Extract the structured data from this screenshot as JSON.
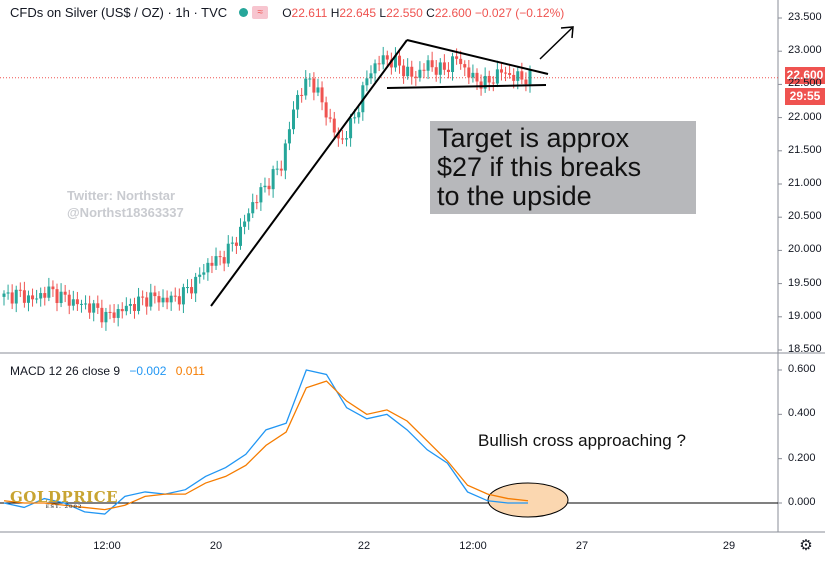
{
  "header": {
    "symbol": "CFDs on Silver (US$ / OZ) · 1h · TVC",
    "o_label": "O",
    "o": "22.611",
    "h_label": "H",
    "h": "22.645",
    "l_label": "L",
    "l": "22.550",
    "c_label": "C",
    "c": "22.600",
    "change": "−0.027 (−0.12%)"
  },
  "macd_header": {
    "label": "MACD 12 26 close 9",
    "macd": "−0.002",
    "signal": "0.011"
  },
  "price_tag": {
    "price": "22.600",
    "countdown": "29:55"
  },
  "annotations": {
    "target_line1": "Target is approx",
    "target_line2": "$27 if this breaks",
    "target_line3": "to the upside",
    "twitter_line1": "Twitter: Northstar",
    "twitter_line2": "@Northst18363337",
    "bullish": "Bullish cross approaching ?"
  },
  "logo": {
    "name": "GOLDPRICE",
    "est": "EST. 2002"
  },
  "colors": {
    "up": "#26a69a",
    "down": "#ef5350",
    "macd": "#2196f3",
    "signal": "#f57c00",
    "ellipse": "#fbd7b0"
  },
  "chart_data": [
    {
      "type": "candlestick",
      "title": "CFDs on Silver (US$ / OZ)",
      "yticks": [
        "23.500",
        "23.000",
        "22.500",
        "22.000",
        "21.500",
        "21.000",
        "20.500",
        "20.000",
        "19.500",
        "19.000",
        "18.500"
      ],
      "xticks": [
        "12:00",
        "20",
        "22",
        "12:00",
        "27",
        "29"
      ],
      "ylim": [
        18.5,
        23.5
      ],
      "approx_close_path": [
        19.3,
        19.35,
        19.25,
        19.4,
        19.3,
        19.2,
        19.15,
        19.0,
        19.1,
        19.2,
        19.3,
        19.25,
        19.3,
        19.5,
        19.8,
        19.9,
        20.2,
        20.7,
        21.0,
        21.3,
        22.3,
        22.6,
        22.1,
        21.6,
        22.0,
        22.7,
        22.9,
        22.8,
        22.6,
        22.8,
        22.7,
        22.9,
        22.6,
        22.5,
        22.7,
        22.6,
        22.6
      ]
    },
    {
      "type": "line",
      "title": "MACD 12 26 close 9",
      "yticks": [
        "0.600",
        "0.400",
        "0.200",
        "0.000"
      ],
      "ylim": [
        -0.1,
        0.65
      ],
      "series": [
        {
          "name": "MACD",
          "values": [
            0.0,
            -0.02,
            0.02,
            0.0,
            -0.04,
            -0.05,
            0.03,
            0.05,
            0.04,
            0.06,
            0.12,
            0.16,
            0.22,
            0.33,
            0.36,
            0.6,
            0.58,
            0.43,
            0.38,
            0.4,
            0.33,
            0.24,
            0.18,
            0.05,
            0.01,
            0.0,
            0.0
          ]
        },
        {
          "name": "Signal",
          "values": [
            0.01,
            0.0,
            0.0,
            -0.01,
            -0.02,
            -0.03,
            -0.01,
            0.03,
            0.04,
            0.04,
            0.09,
            0.12,
            0.17,
            0.26,
            0.32,
            0.52,
            0.55,
            0.46,
            0.4,
            0.42,
            0.37,
            0.28,
            0.19,
            0.08,
            0.04,
            0.02,
            0.01
          ]
        }
      ]
    }
  ]
}
